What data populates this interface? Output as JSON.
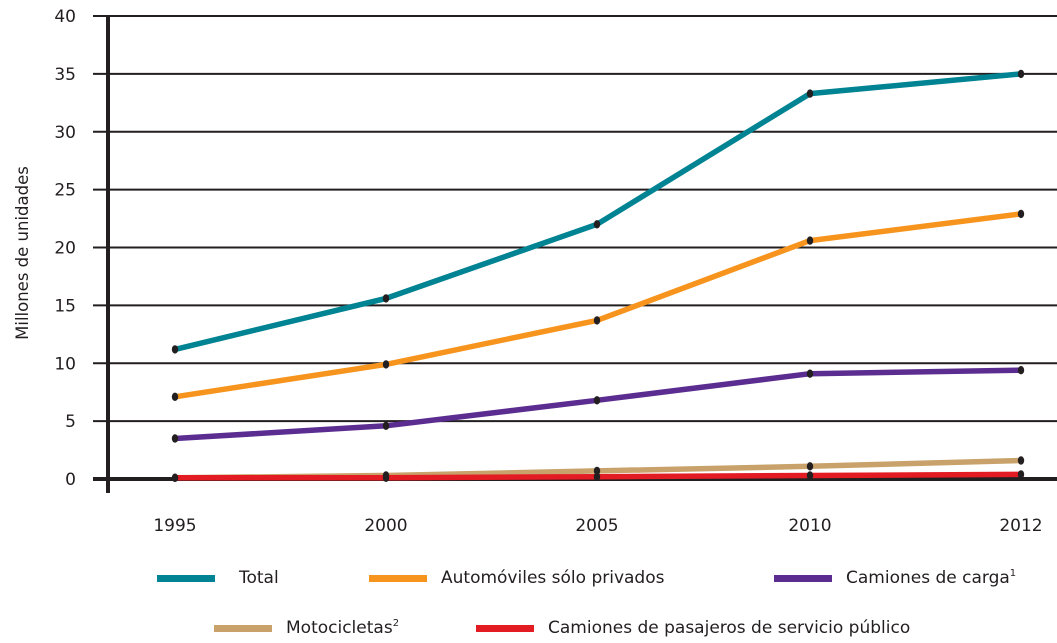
{
  "chart_data": {
    "type": "line",
    "title": "",
    "xlabel": "",
    "ylabel": "Millones de unidades",
    "x": [
      "1995",
      "2000",
      "2005",
      "2010",
      "2012"
    ],
    "ylim": [
      0,
      40
    ],
    "yticks": [
      "0",
      "5",
      "10",
      "15",
      "20",
      "25",
      "30",
      "35",
      "40"
    ],
    "grid": "horizontal",
    "legend_position": "bottom",
    "series": [
      {
        "name": "Total",
        "sup": "",
        "color": "#008392",
        "values": [
          11.2,
          15.6,
          22.0,
          33.3,
          35.0
        ]
      },
      {
        "name": "Automóviles sólo privados",
        "sup": "",
        "color": "#f7941d",
        "values": [
          7.1,
          9.9,
          13.7,
          20.6,
          22.9
        ]
      },
      {
        "name": "Camiones de carga",
        "sup": "1",
        "color": "#5c2d91",
        "values": [
          3.5,
          4.6,
          6.8,
          9.1,
          9.4
        ]
      },
      {
        "name": "Motocicletas",
        "sup": "2",
        "color": "#c8a26a",
        "values": [
          0.1,
          0.3,
          0.7,
          1.1,
          1.6
        ]
      },
      {
        "name": "Camiones de pasajeros de servicio público",
        "sup": "",
        "color": "#e31b23",
        "values": [
          0.1,
          0.1,
          0.2,
          0.3,
          0.4
        ]
      }
    ]
  }
}
